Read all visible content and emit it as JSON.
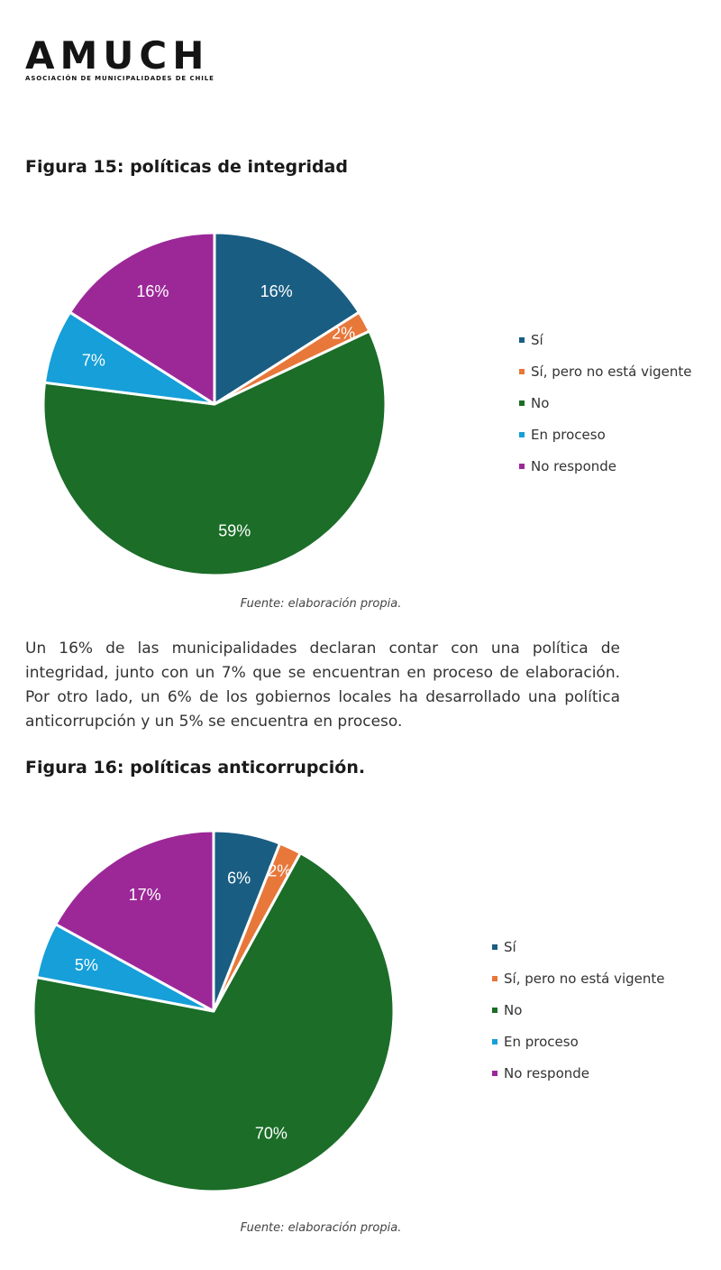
{
  "logo": {
    "word": "AMUCH",
    "subtitle": "ASOCIACIÓN DE MUNICIPALIDADES DE CHILE"
  },
  "colors": {
    "si": "#1a5d82",
    "si_no_vigente": "#e8773a",
    "no": "#1b6d28",
    "en_proceso": "#169fd9",
    "no_responde": "#9c2898"
  },
  "paragraph": "Un 16% de las municipalidades declaran contar con una política de integridad, junto con un 7% que se encuentran en proceso de elaboración. Por otro lado, un 6% de los gobiernos locales ha desarrollado una política anticorrupción y un 5% se encuentra en proceso.",
  "chart_data": [
    {
      "type": "pie",
      "title": "Figura 15: políticas de integridad",
      "source": "Fuente: elaboración propia.",
      "categories": [
        "Sí",
        "Sí, pero no está vigente",
        "No",
        "En proceso",
        "No responde"
      ],
      "values": [
        16,
        2,
        59,
        7,
        16
      ],
      "labels": [
        "16%",
        "2%",
        "59%",
        "7%",
        "16%"
      ],
      "colors": [
        "#1a5d82",
        "#e8773a",
        "#1b6d28",
        "#169fd9",
        "#9c2898"
      ],
      "legend_position": "right"
    },
    {
      "type": "pie",
      "title": "Figura 16: políticas anticorrupción.",
      "source": "Fuente: elaboración propia.",
      "categories": [
        "Sí",
        "Sí, pero no está vigente",
        "No",
        "En proceso",
        "No responde"
      ],
      "values": [
        6,
        2,
        70,
        5,
        17
      ],
      "labels": [
        "6%",
        "2%",
        "70%",
        "5%",
        "17%"
      ],
      "colors": [
        "#1a5d82",
        "#e8773a",
        "#1b6d28",
        "#169fd9",
        "#9c2898"
      ],
      "legend_position": "right"
    }
  ]
}
